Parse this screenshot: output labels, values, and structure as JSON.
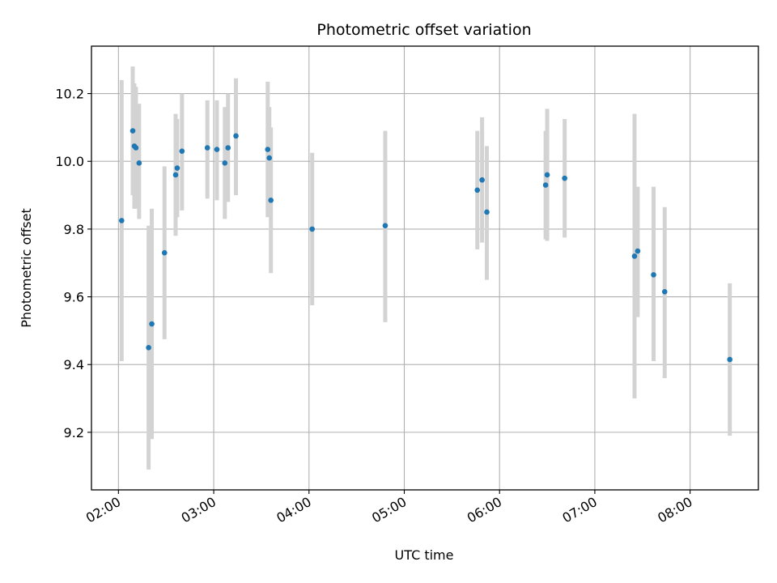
{
  "chart_data": {
    "type": "scatter",
    "title": "Photometric offset variation",
    "xlabel": "UTC time",
    "ylabel": "Photometric offset",
    "x_unit": "UTC time (HH:MM)",
    "xlim": [
      "01:43",
      "08:43"
    ],
    "ylim": [
      9.03,
      10.34
    ],
    "grid": true,
    "x_ticks": [
      "02:00",
      "03:00",
      "04:00",
      "05:00",
      "06:00",
      "07:00",
      "08:00"
    ],
    "y_ticks": [
      "9.2",
      "9.4",
      "9.6",
      "9.8",
      "10.0",
      "10.2"
    ],
    "colors": {
      "point": "#1f77b4",
      "errorbar": "#d3d3d3",
      "grid": "#b0b0b0",
      "axes": "#000000"
    },
    "series": [
      {
        "points": [
          {
            "x": "02:02",
            "y": 9.825,
            "low": 9.41,
            "high": 10.24
          },
          {
            "x": "02:09",
            "y": 10.09,
            "low": 9.9,
            "high": 10.28
          },
          {
            "x": "02:10",
            "y": 10.045,
            "low": 9.86,
            "high": 10.23
          },
          {
            "x": "02:11",
            "y": 10.04,
            "low": 9.86,
            "high": 10.22
          },
          {
            "x": "02:13",
            "y": 9.995,
            "low": 9.83,
            "high": 10.17
          },
          {
            "x": "02:19",
            "y": 9.45,
            "low": 9.09,
            "high": 9.81
          },
          {
            "x": "02:21",
            "y": 9.52,
            "low": 9.18,
            "high": 9.86
          },
          {
            "x": "02:29",
            "y": 9.73,
            "low": 9.475,
            "high": 9.985
          },
          {
            "x": "02:36",
            "y": 9.96,
            "low": 9.78,
            "high": 10.14
          },
          {
            "x": "02:37",
            "y": 9.98,
            "low": 9.835,
            "high": 10.125
          },
          {
            "x": "02:40",
            "y": 10.03,
            "low": 9.855,
            "high": 10.2
          },
          {
            "x": "02:56",
            "y": 10.04,
            "low": 9.89,
            "high": 10.18
          },
          {
            "x": "03:02",
            "y": 10.035,
            "low": 9.885,
            "high": 10.18
          },
          {
            "x": "03:07",
            "y": 9.995,
            "low": 9.83,
            "high": 10.16
          },
          {
            "x": "03:09",
            "y": 10.04,
            "low": 9.88,
            "high": 10.2
          },
          {
            "x": "03:14",
            "y": 10.075,
            "low": 9.9,
            "high": 10.245
          },
          {
            "x": "03:34",
            "y": 10.035,
            "low": 9.835,
            "high": 10.235
          },
          {
            "x": "03:35",
            "y": 10.01,
            "low": 9.86,
            "high": 10.16
          },
          {
            "x": "03:36",
            "y": 9.885,
            "low": 9.67,
            "high": 10.1
          },
          {
            "x": "04:02",
            "y": 9.8,
            "low": 9.575,
            "high": 10.025
          },
          {
            "x": "04:48",
            "y": 9.81,
            "low": 9.525,
            "high": 10.09
          },
          {
            "x": "05:46",
            "y": 9.915,
            "low": 9.74,
            "high": 10.09
          },
          {
            "x": "05:49",
            "y": 9.945,
            "low": 9.76,
            "high": 10.13
          },
          {
            "x": "05:52",
            "y": 9.85,
            "low": 9.65,
            "high": 10.045
          },
          {
            "x": "06:29",
            "y": 9.93,
            "low": 9.77,
            "high": 10.09
          },
          {
            "x": "06:30",
            "y": 9.96,
            "low": 9.765,
            "high": 10.155
          },
          {
            "x": "06:41",
            "y": 9.95,
            "low": 9.775,
            "high": 10.125
          },
          {
            "x": "07:25",
            "y": 9.72,
            "low": 9.3,
            "high": 10.14
          },
          {
            "x": "07:27",
            "y": 9.735,
            "low": 9.54,
            "high": 9.925
          },
          {
            "x": "07:37",
            "y": 9.665,
            "low": 9.41,
            "high": 9.925
          },
          {
            "x": "07:44",
            "y": 9.615,
            "low": 9.36,
            "high": 9.865
          },
          {
            "x": "08:25",
            "y": 9.415,
            "low": 9.19,
            "high": 9.64
          }
        ]
      }
    ]
  }
}
